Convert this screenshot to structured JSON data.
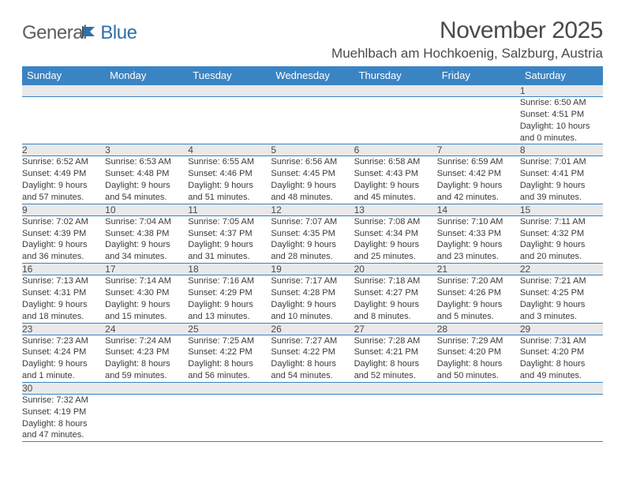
{
  "logo": {
    "text1": "Genera",
    "text2": "l",
    "text3": "Blue"
  },
  "title": "November 2025",
  "location": "Muehlbach am Hochkoenig, Salzburg, Austria",
  "colors": {
    "header_bg": "#3b84c4",
    "header_fg": "#ffffff",
    "daynum_bg": "#e9e9e9",
    "rule": "#3b84c4",
    "text": "#3a3a3a",
    "logo_gray": "#5e5e5e",
    "logo_blue": "#2f6fab",
    "page_bg": "#ffffff"
  },
  "weekdays": [
    "Sunday",
    "Monday",
    "Tuesday",
    "Wednesday",
    "Thursday",
    "Friday",
    "Saturday"
  ],
  "weeks": [
    {
      "nums": [
        "",
        "",
        "",
        "",
        "",
        "",
        "1"
      ],
      "cells": [
        null,
        null,
        null,
        null,
        null,
        null,
        {
          "sr": "6:50 AM",
          "ss": "4:51 PM",
          "dh": "10",
          "dm": "0",
          "unit": "minutes"
        }
      ]
    },
    {
      "nums": [
        "2",
        "3",
        "4",
        "5",
        "6",
        "7",
        "8"
      ],
      "cells": [
        {
          "sr": "6:52 AM",
          "ss": "4:49 PM",
          "dh": "9",
          "dm": "57",
          "unit": "minutes"
        },
        {
          "sr": "6:53 AM",
          "ss": "4:48 PM",
          "dh": "9",
          "dm": "54",
          "unit": "minutes"
        },
        {
          "sr": "6:55 AM",
          "ss": "4:46 PM",
          "dh": "9",
          "dm": "51",
          "unit": "minutes"
        },
        {
          "sr": "6:56 AM",
          "ss": "4:45 PM",
          "dh": "9",
          "dm": "48",
          "unit": "minutes"
        },
        {
          "sr": "6:58 AM",
          "ss": "4:43 PM",
          "dh": "9",
          "dm": "45",
          "unit": "minutes"
        },
        {
          "sr": "6:59 AM",
          "ss": "4:42 PM",
          "dh": "9",
          "dm": "42",
          "unit": "minutes"
        },
        {
          "sr": "7:01 AM",
          "ss": "4:41 PM",
          "dh": "9",
          "dm": "39",
          "unit": "minutes"
        }
      ]
    },
    {
      "nums": [
        "9",
        "10",
        "11",
        "12",
        "13",
        "14",
        "15"
      ],
      "cells": [
        {
          "sr": "7:02 AM",
          "ss": "4:39 PM",
          "dh": "9",
          "dm": "36",
          "unit": "minutes"
        },
        {
          "sr": "7:04 AM",
          "ss": "4:38 PM",
          "dh": "9",
          "dm": "34",
          "unit": "minutes"
        },
        {
          "sr": "7:05 AM",
          "ss": "4:37 PM",
          "dh": "9",
          "dm": "31",
          "unit": "minutes"
        },
        {
          "sr": "7:07 AM",
          "ss": "4:35 PM",
          "dh": "9",
          "dm": "28",
          "unit": "minutes"
        },
        {
          "sr": "7:08 AM",
          "ss": "4:34 PM",
          "dh": "9",
          "dm": "25",
          "unit": "minutes"
        },
        {
          "sr": "7:10 AM",
          "ss": "4:33 PM",
          "dh": "9",
          "dm": "23",
          "unit": "minutes"
        },
        {
          "sr": "7:11 AM",
          "ss": "4:32 PM",
          "dh": "9",
          "dm": "20",
          "unit": "minutes"
        }
      ]
    },
    {
      "nums": [
        "16",
        "17",
        "18",
        "19",
        "20",
        "21",
        "22"
      ],
      "cells": [
        {
          "sr": "7:13 AM",
          "ss": "4:31 PM",
          "dh": "9",
          "dm": "18",
          "unit": "minutes"
        },
        {
          "sr": "7:14 AM",
          "ss": "4:30 PM",
          "dh": "9",
          "dm": "15",
          "unit": "minutes"
        },
        {
          "sr": "7:16 AM",
          "ss": "4:29 PM",
          "dh": "9",
          "dm": "13",
          "unit": "minutes"
        },
        {
          "sr": "7:17 AM",
          "ss": "4:28 PM",
          "dh": "9",
          "dm": "10",
          "unit": "minutes"
        },
        {
          "sr": "7:18 AM",
          "ss": "4:27 PM",
          "dh": "9",
          "dm": "8",
          "unit": "minutes"
        },
        {
          "sr": "7:20 AM",
          "ss": "4:26 PM",
          "dh": "9",
          "dm": "5",
          "unit": "minutes"
        },
        {
          "sr": "7:21 AM",
          "ss": "4:25 PM",
          "dh": "9",
          "dm": "3",
          "unit": "minutes"
        }
      ]
    },
    {
      "nums": [
        "23",
        "24",
        "25",
        "26",
        "27",
        "28",
        "29"
      ],
      "cells": [
        {
          "sr": "7:23 AM",
          "ss": "4:24 PM",
          "dh": "9",
          "dm": "1",
          "unit": "minute"
        },
        {
          "sr": "7:24 AM",
          "ss": "4:23 PM",
          "dh": "8",
          "dm": "59",
          "unit": "minutes"
        },
        {
          "sr": "7:25 AM",
          "ss": "4:22 PM",
          "dh": "8",
          "dm": "56",
          "unit": "minutes"
        },
        {
          "sr": "7:27 AM",
          "ss": "4:22 PM",
          "dh": "8",
          "dm": "54",
          "unit": "minutes"
        },
        {
          "sr": "7:28 AM",
          "ss": "4:21 PM",
          "dh": "8",
          "dm": "52",
          "unit": "minutes"
        },
        {
          "sr": "7:29 AM",
          "ss": "4:20 PM",
          "dh": "8",
          "dm": "50",
          "unit": "minutes"
        },
        {
          "sr": "7:31 AM",
          "ss": "4:20 PM",
          "dh": "8",
          "dm": "49",
          "unit": "minutes"
        }
      ]
    },
    {
      "nums": [
        "30",
        "",
        "",
        "",
        "",
        "",
        ""
      ],
      "cells": [
        {
          "sr": "7:32 AM",
          "ss": "4:19 PM",
          "dh": "8",
          "dm": "47",
          "unit": "minutes"
        },
        null,
        null,
        null,
        null,
        null,
        null
      ],
      "last": true
    }
  ],
  "labels": {
    "sunrise": "Sunrise:",
    "sunset": "Sunset:",
    "daylight": "Daylight:",
    "hours": "hours",
    "and": "and"
  }
}
